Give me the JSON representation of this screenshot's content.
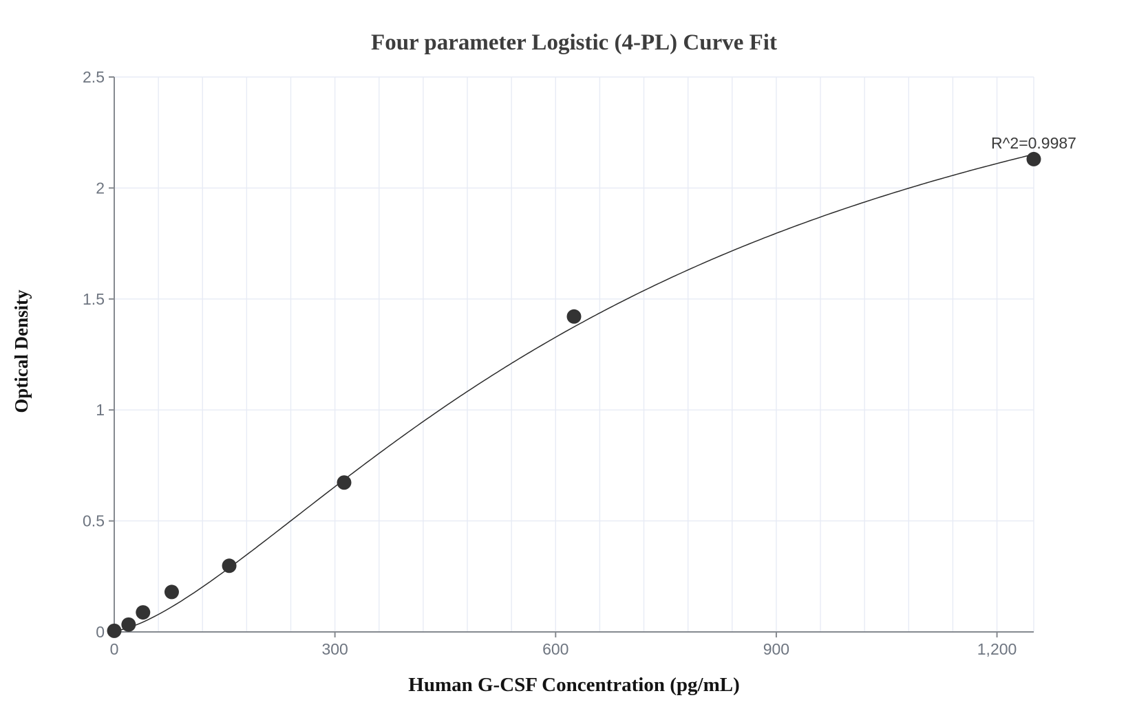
{
  "chart_data": {
    "type": "scatter",
    "title": "Four parameter Logistic (4-PL) Curve Fit",
    "xlabel": "Human G-CSF Concentration (pg/mL)",
    "ylabel": "Optical Density",
    "xlim": [
      0,
      1250
    ],
    "ylim": [
      0,
      2.5
    ],
    "x_ticks": [
      {
        "v": 0,
        "label": "0"
      },
      {
        "v": 300,
        "label": "300"
      },
      {
        "v": 600,
        "label": "600"
      },
      {
        "v": 900,
        "label": "900"
      },
      {
        "v": 1200,
        "label": "1,200"
      }
    ],
    "y_ticks": [
      {
        "v": 0,
        "label": "0"
      },
      {
        "v": 0.5,
        "label": "0.5"
      },
      {
        "v": 1,
        "label": "1"
      },
      {
        "v": 1.5,
        "label": "1.5"
      },
      {
        "v": 2,
        "label": "2"
      },
      {
        "v": 2.5,
        "label": "2.5"
      }
    ],
    "grid": {
      "on": true,
      "x_minor_step": 60,
      "y_step": 0.5
    },
    "legend": false,
    "points": [
      {
        "x": 0,
        "y": 0.005
      },
      {
        "x": 19.5,
        "y": 0.033
      },
      {
        "x": 39.1,
        "y": 0.088
      },
      {
        "x": 78.1,
        "y": 0.18
      },
      {
        "x": 156.3,
        "y": 0.298
      },
      {
        "x": 312.5,
        "y": 0.673
      },
      {
        "x": 625,
        "y": 1.421
      },
      {
        "x": 1250,
        "y": 2.13
      }
    ],
    "fit": {
      "model": "4PL",
      "a": 0.005,
      "b": 1.48,
      "c": 745,
      "d": 3.15
    },
    "annotation": {
      "text": "R^2=0.9987",
      "x": 1250,
      "y": 2.178
    }
  },
  "colors": {
    "background": "#ffffff",
    "grid": "#e7ebf5",
    "axis": "#85898f",
    "tick_label": "#6e7580",
    "title": "#3d3d3d",
    "axis_title": "#141414",
    "point": "#333333",
    "curve": "#2b2b2b",
    "annotation": "#3a3a3a"
  }
}
